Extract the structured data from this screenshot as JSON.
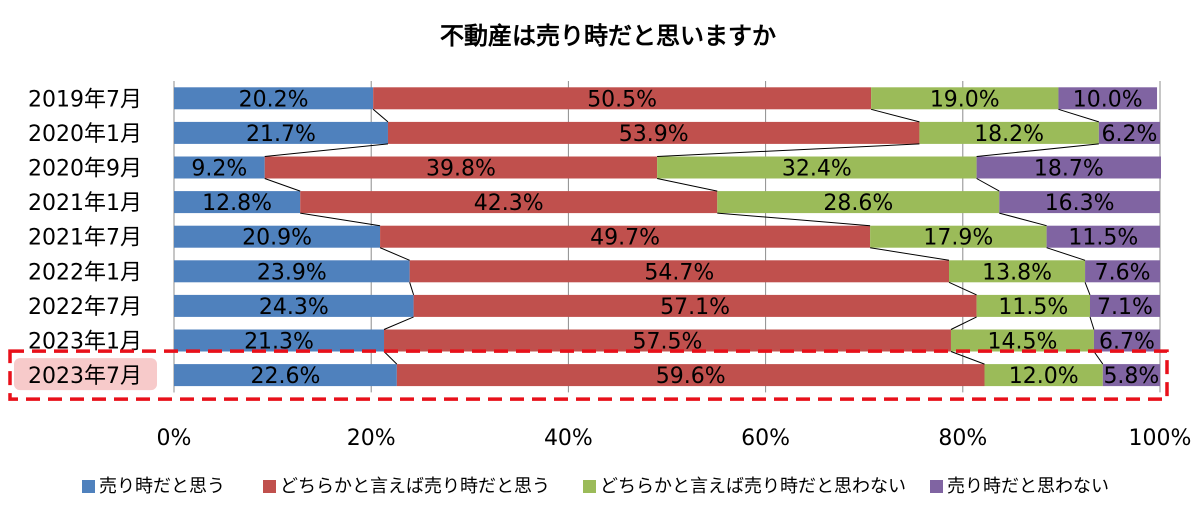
{
  "chart_data": {
    "type": "bar",
    "orientation": "horizontal",
    "stacked": true,
    "percent_stacked": true,
    "title": "不動産は売り時だと思いますか",
    "categories": [
      "2019年7月",
      "2020年1月",
      "2020年9月",
      "2021年1月",
      "2021年7月",
      "2022年1月",
      "2022年7月",
      "2023年1月",
      "2023年7月"
    ],
    "highlighted_category": "2023年7月",
    "series": [
      {
        "name": "売り時だと思う",
        "color": "#4f81bd",
        "values": [
          20.2,
          21.7,
          9.2,
          12.8,
          20.9,
          23.9,
          24.3,
          21.3,
          22.6
        ]
      },
      {
        "name": "どちらかと言えば売り時だと思う",
        "color": "#c0504d",
        "values": [
          50.5,
          53.9,
          39.8,
          42.3,
          49.7,
          54.7,
          57.1,
          57.5,
          59.6
        ]
      },
      {
        "name": "どちらかと言えば売り時だと思わない",
        "color": "#9bbb59",
        "values": [
          19.0,
          18.2,
          32.4,
          28.6,
          17.9,
          13.8,
          11.5,
          14.5,
          12.0
        ]
      },
      {
        "name": "売り時だと思わない",
        "color": "#8064a2",
        "values": [
          10.0,
          6.2,
          18.7,
          16.3,
          11.5,
          7.6,
          7.1,
          6.7,
          5.8
        ]
      }
    ],
    "xlim": [
      0,
      100
    ],
    "xticks": [
      "0%",
      "20%",
      "40%",
      "60%",
      "80%",
      "100%"
    ],
    "grid": true,
    "series_lines": true,
    "legend": "bottom",
    "highlight_color": "#e8101a"
  }
}
